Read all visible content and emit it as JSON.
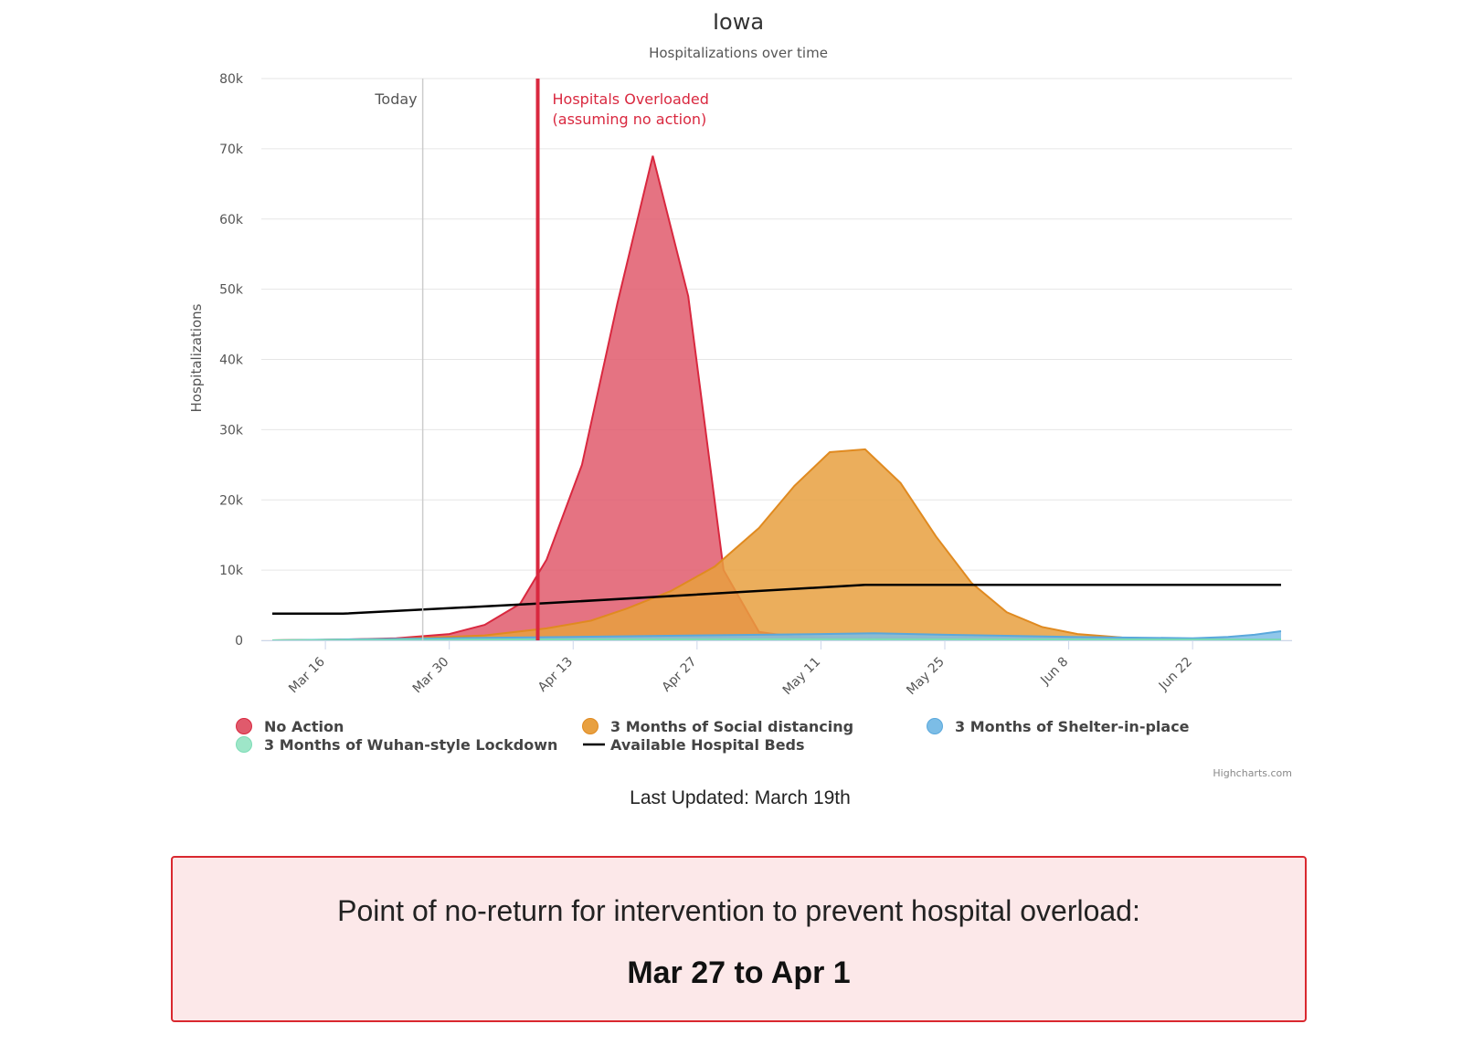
{
  "chart_data": {
    "type": "area",
    "title": "Iowa",
    "subtitle": "Hospitalizations over time",
    "ylabel": "Hospitalizations",
    "ylim": [
      0,
      80000
    ],
    "y_ticks": [
      "0",
      "10k",
      "20k",
      "30k",
      "40k",
      "50k",
      "60k",
      "70k",
      "80k"
    ],
    "x_start": "2020-03-10",
    "x_end": "2020-07-02",
    "x_ticks": [
      {
        "date": "2020-03-16",
        "label": "Mar 16"
      },
      {
        "date": "2020-03-30",
        "label": "Mar 30"
      },
      {
        "date": "2020-04-13",
        "label": "Apr 13"
      },
      {
        "date": "2020-04-27",
        "label": "Apr 27"
      },
      {
        "date": "2020-05-11",
        "label": "May 11"
      },
      {
        "date": "2020-05-25",
        "label": "May 25"
      },
      {
        "date": "2020-06-08",
        "label": "Jun 8"
      },
      {
        "date": "2020-06-22",
        "label": "Jun 22"
      }
    ],
    "plot_lines": [
      {
        "date": "2020-03-27",
        "label": "Today",
        "color": "#cccccc",
        "style": "thin"
      },
      {
        "date": "2020-04-09",
        "label": "Hospitals Overloaded",
        "label2": "(assuming no action)",
        "color": "#d9283f",
        "style": "thick"
      }
    ],
    "series": [
      {
        "name": "No Action",
        "kind": "area",
        "color": "#e05a6c",
        "line": "#d9283f",
        "data": [
          [
            "2020-03-10",
            0
          ],
          [
            "2020-03-18",
            100
          ],
          [
            "2020-03-24",
            300
          ],
          [
            "2020-03-30",
            900
          ],
          [
            "2020-04-03",
            2200
          ],
          [
            "2020-04-07",
            5200
          ],
          [
            "2020-04-10",
            11500
          ],
          [
            "2020-04-14",
            25000
          ],
          [
            "2020-04-18",
            48000
          ],
          [
            "2020-04-22",
            69000
          ],
          [
            "2020-04-26",
            49000
          ],
          [
            "2020-04-30",
            10000
          ],
          [
            "2020-05-04",
            1200
          ],
          [
            "2020-05-08",
            500
          ],
          [
            "2020-05-12",
            300
          ],
          [
            "2020-07-02",
            100
          ]
        ]
      },
      {
        "name": "3 Months of Social distancing",
        "kind": "area",
        "color": "#e8a040",
        "line": "#e08a20",
        "data": [
          [
            "2020-03-10",
            0
          ],
          [
            "2020-03-24",
            200
          ],
          [
            "2020-04-03",
            700
          ],
          [
            "2020-04-10",
            1700
          ],
          [
            "2020-04-15",
            2800
          ],
          [
            "2020-04-19",
            4500
          ],
          [
            "2020-04-24",
            7000
          ],
          [
            "2020-04-29",
            10500
          ],
          [
            "2020-05-04",
            16000
          ],
          [
            "2020-05-08",
            22000
          ],
          [
            "2020-05-12",
            26800
          ],
          [
            "2020-05-16",
            27200
          ],
          [
            "2020-05-20",
            22400
          ],
          [
            "2020-05-24",
            14800
          ],
          [
            "2020-05-28",
            8200
          ],
          [
            "2020-06-01",
            4000
          ],
          [
            "2020-06-05",
            1900
          ],
          [
            "2020-06-09",
            900
          ],
          [
            "2020-06-14",
            400
          ],
          [
            "2020-06-20",
            200
          ],
          [
            "2020-07-02",
            100
          ]
        ]
      },
      {
        "name": "3 Months of Shelter-in-place",
        "kind": "area",
        "color": "#7cbde6",
        "line": "#5aa8dc",
        "data": [
          [
            "2020-03-10",
            0
          ],
          [
            "2020-03-30",
            300
          ],
          [
            "2020-04-13",
            500
          ],
          [
            "2020-04-27",
            700
          ],
          [
            "2020-05-11",
            900
          ],
          [
            "2020-05-17",
            1000
          ],
          [
            "2020-05-25",
            800
          ],
          [
            "2020-06-08",
            500
          ],
          [
            "2020-06-22",
            300
          ],
          [
            "2020-06-26",
            500
          ],
          [
            "2020-06-29",
            800
          ],
          [
            "2020-07-02",
            1300
          ]
        ]
      },
      {
        "name": "3 Months of Wuhan-style Lockdown",
        "kind": "area",
        "color": "#9ee6c8",
        "line": "#7cdcb6",
        "data": [
          [
            "2020-03-10",
            0
          ],
          [
            "2020-03-30",
            100
          ],
          [
            "2020-05-11",
            150
          ],
          [
            "2020-07-02",
            100
          ]
        ]
      },
      {
        "name": "Available Hospital Beds",
        "kind": "line",
        "color": "#000000",
        "data": [
          [
            "2020-03-10",
            3800
          ],
          [
            "2020-03-18",
            3800
          ],
          [
            "2020-04-10",
            5300
          ],
          [
            "2020-05-16",
            7900
          ],
          [
            "2020-07-02",
            7900
          ]
        ]
      }
    ],
    "legend_position": "bottom",
    "credits": "Highcharts.com"
  },
  "footer": {
    "last_updated": "Last Updated: March 19th"
  },
  "callout": {
    "message": "Point of no-return for intervention to prevent hospital overload:",
    "range": "Mar 27 to Apr 1",
    "border_color": "#d9282f",
    "background": "#fce8e9"
  }
}
